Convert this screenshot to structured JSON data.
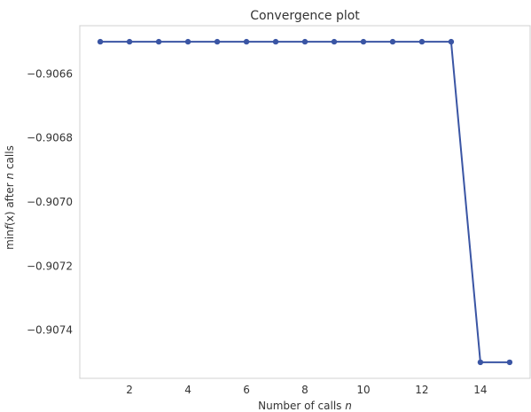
{
  "chart_data": {
    "type": "line",
    "title": "Convergence plot",
    "xlabel_main": "Number of calls ",
    "xlabel_var": "n",
    "ylabel_main": "min",
    "ylabel_f": "f",
    "ylabel_mid": "(x) after ",
    "ylabel_var": "n",
    "ylabel_tail": " calls",
    "x": [
      1,
      2,
      3,
      4,
      5,
      6,
      7,
      8,
      9,
      10,
      11,
      12,
      13,
      14,
      15
    ],
    "y": [
      -0.9065,
      -0.9065,
      -0.9065,
      -0.9065,
      -0.9065,
      -0.9065,
      -0.9065,
      -0.9065,
      -0.9065,
      -0.9065,
      -0.9065,
      -0.9065,
      -0.9065,
      -0.9075,
      -0.9075
    ],
    "xlim": [
      0.3,
      15.7
    ],
    "ylim": [
      -0.90755,
      -0.90645
    ],
    "x_ticks": [
      2,
      4,
      6,
      8,
      10,
      12,
      14
    ],
    "x_tick_labels": [
      "2",
      "4",
      "6",
      "8",
      "10",
      "12",
      "14"
    ],
    "y_ticks": [
      -0.9066,
      -0.9068,
      -0.907,
      -0.9072,
      -0.9074
    ],
    "y_tick_labels": [
      "−0.9066",
      "−0.9068",
      "−0.9070",
      "−0.9072",
      "−0.9074"
    ],
    "grid": false,
    "line_color": "#3a55a4",
    "marker_color": "#3a55a4",
    "spine_color": "#d0d0d0"
  }
}
